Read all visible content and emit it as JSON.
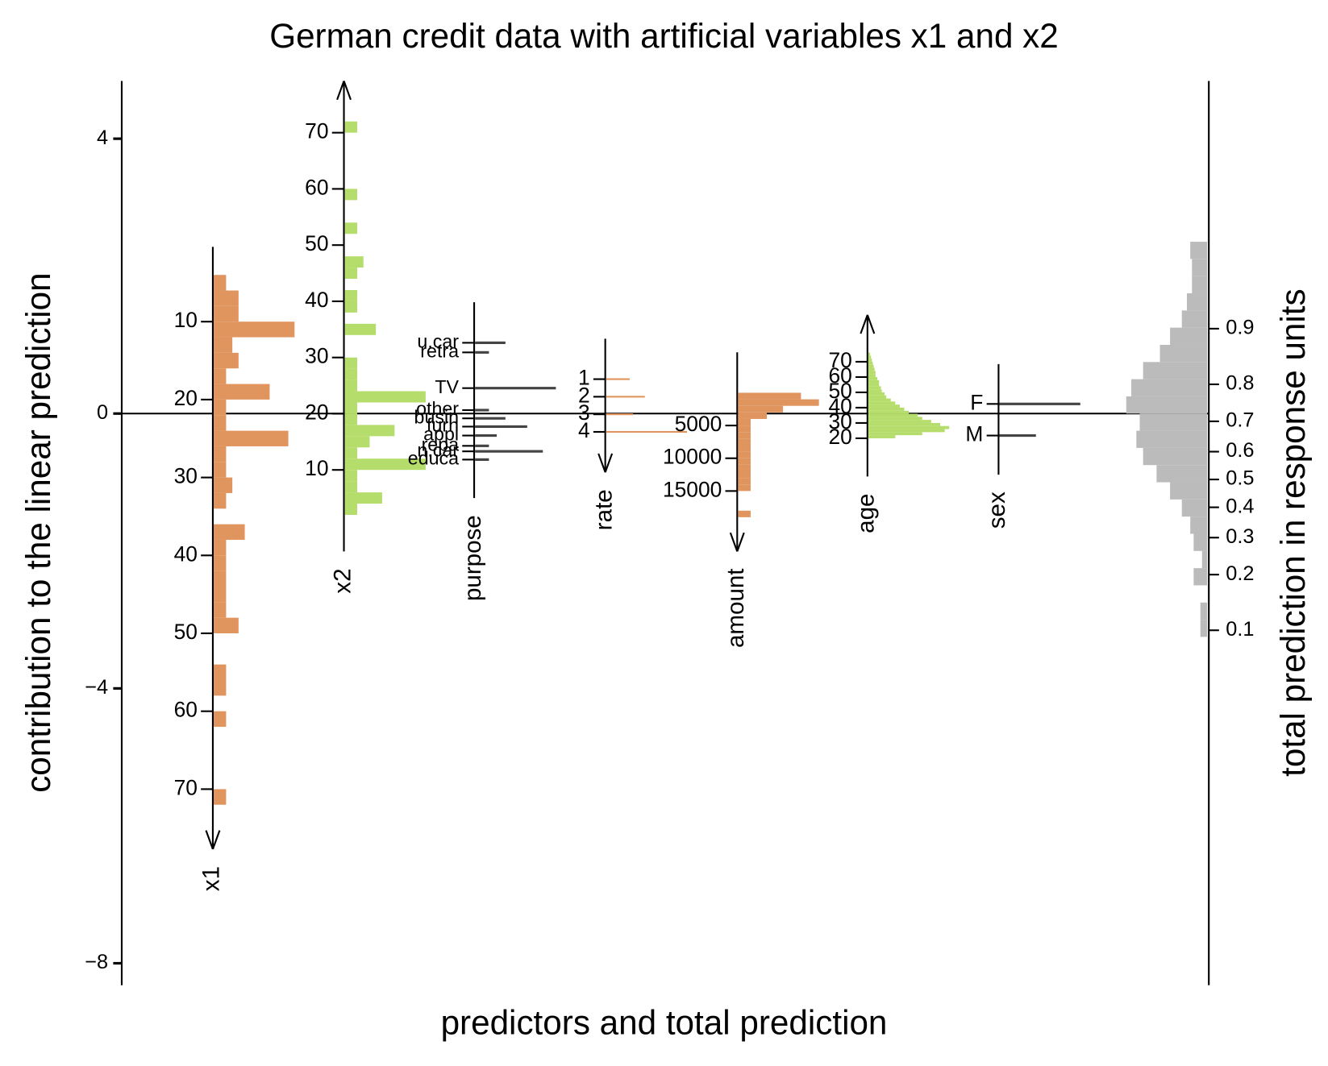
{
  "chart_data": {
    "type": "nomogram",
    "title": "German credit data with artificial variables x1 and x2",
    "xlabel": "predictors and total prediction",
    "ylabel": "contribution to the linear prediction",
    "y2label": "total prediction in response units",
    "ylim": [
      -8.32,
      4.84
    ],
    "yticks": [
      4,
      0,
      {
        "value": -4,
        "label": "−4"
      },
      {
        "value": -8,
        "label": "−8"
      }
    ],
    "y2scale": "logit",
    "y2lim": [
      0.00063,
      0.997
    ],
    "y2ticks": [
      0.9,
      0.8,
      0.7,
      0.6,
      0.5,
      0.4,
      0.3,
      0.2,
      0.1
    ],
    "variables": [
      {
        "name": "x1",
        "color": "#e0955f",
        "lim": [
          0.4,
          77.7
        ],
        "ticks": [
          10,
          20,
          30,
          40,
          50,
          60,
          70
        ],
        "bins": [
          4,
          6,
          8,
          10,
          12,
          14,
          16,
          18,
          20,
          22,
          24,
          26,
          28,
          30,
          32,
          34,
          36,
          38,
          40,
          42,
          44,
          46,
          48,
          50,
          52,
          54,
          56,
          58,
          60,
          62,
          64,
          66,
          68,
          70,
          72,
          74
        ],
        "counts": [
          2,
          4,
          4,
          13,
          3,
          4,
          2,
          9,
          2,
          2,
          12,
          2,
          2,
          3,
          2,
          0,
          5,
          2,
          2,
          2,
          2,
          2,
          4,
          0,
          0,
          2,
          2,
          0,
          2,
          0,
          0,
          0,
          0,
          2,
          0
        ]
      },
      {
        "name": "x2",
        "color": "#b5dd6b",
        "lim": [
          79.2,
          -4.5
        ],
        "ticks": [
          70,
          60,
          50,
          40,
          30,
          20,
          10
        ],
        "bins": [
          2,
          4,
          6,
          8,
          10,
          12,
          14,
          16,
          18,
          20,
          22,
          24,
          26,
          28,
          30,
          32,
          34,
          36,
          38,
          40,
          42,
          44,
          46,
          48,
          50,
          52,
          54,
          56,
          58,
          60,
          62,
          64,
          66,
          68,
          70,
          72
        ],
        "counts": [
          2,
          6,
          2,
          2,
          13,
          2,
          4,
          8,
          2,
          2,
          13,
          2,
          2,
          2,
          0,
          0,
          5,
          0,
          2,
          2,
          0,
          2,
          3,
          0,
          0,
          2,
          0,
          0,
          2,
          0,
          0,
          0,
          0,
          0,
          2
        ]
      },
      {
        "name": "purpose",
        "color": "#444444",
        "extent": [
          1.62,
          -1.23
        ],
        "categories": [
          "u.car",
          "retra",
          "TV",
          "other",
          "busin",
          "furn",
          "appl",
          "repa",
          "n.car",
          "educa"
        ],
        "positions": [
          1.03,
          0.89,
          0.37,
          0.05,
          -0.07,
          -0.19,
          -0.32,
          -0.47,
          -0.55,
          -0.67
        ],
        "counts": [
          35,
          16,
          93,
          16,
          35,
          60,
          25,
          16,
          78,
          16
        ]
      },
      {
        "name": "rate",
        "color": "#e0955f",
        "lim": [
          -1.3,
          6.3
        ],
        "ticks": [
          1,
          2,
          3,
          4
        ],
        "levels": [
          1,
          2,
          3,
          4
        ],
        "counts": [
          14,
          23,
          16,
          48
        ]
      },
      {
        "name": "amount",
        "color": "#e0955f",
        "lim": [
          -6170,
          24220
        ],
        "ticks": [
          5000,
          10000,
          15000
        ],
        "bins": [
          0,
          1000,
          2000,
          3000,
          4000,
          5000,
          6000,
          7000,
          8000,
          9000,
          10000,
          11000,
          12000,
          13000,
          14000,
          15000,
          16000,
          17000,
          18000,
          19000
        ],
        "counts": [
          35,
          45,
          25,
          16,
          7,
          7,
          7,
          7,
          7,
          7,
          7,
          7,
          7,
          7,
          7,
          0,
          0,
          0,
          7
        ]
      },
      {
        "name": "age",
        "color": "#b5dd6b",
        "lim": [
          100.6,
          -5
        ],
        "ticks": [
          70,
          60,
          50,
          40,
          30,
          20
        ],
        "bins": [
          20,
          22,
          24,
          26,
          28,
          30,
          32,
          34,
          36,
          38,
          40,
          42,
          44,
          46,
          48,
          50,
          52,
          54,
          56,
          58,
          60,
          62,
          64,
          66,
          68,
          70,
          72,
          74,
          76
        ],
        "counts": [
          30,
          60,
          85,
          90,
          80,
          70,
          60,
          55,
          45,
          40,
          35,
          30,
          25,
          20,
          18,
          15,
          14,
          12,
          12,
          10,
          8,
          8,
          7,
          6,
          5,
          4,
          3,
          2
        ]
      },
      {
        "name": "sex",
        "color": "#444444",
        "extent": [
          0.72,
          -0.89
        ],
        "categories": [
          "F",
          "M"
        ],
        "positions": [
          0.14,
          -0.32
        ],
        "counts": [
          93,
          42
        ]
      }
    ],
    "total": {
      "color": "#bbbbbb",
      "bins": [
        2.5,
        2.25,
        2,
        1.75,
        1.5,
        1.25,
        1,
        0.75,
        0.5,
        0.25,
        0,
        -0.25,
        -0.5,
        -0.75,
        -1,
        -1.25,
        -1.5,
        -1.75,
        -2,
        -2.25,
        -2.5,
        -2.75,
        -3,
        -3.25
      ],
      "counts": [
        10,
        9,
        9,
        12,
        15,
        22,
        28,
        38,
        45,
        48,
        40,
        42,
        38,
        30,
        22,
        15,
        10,
        8,
        3,
        8,
        0,
        4,
        4
      ]
    }
  }
}
